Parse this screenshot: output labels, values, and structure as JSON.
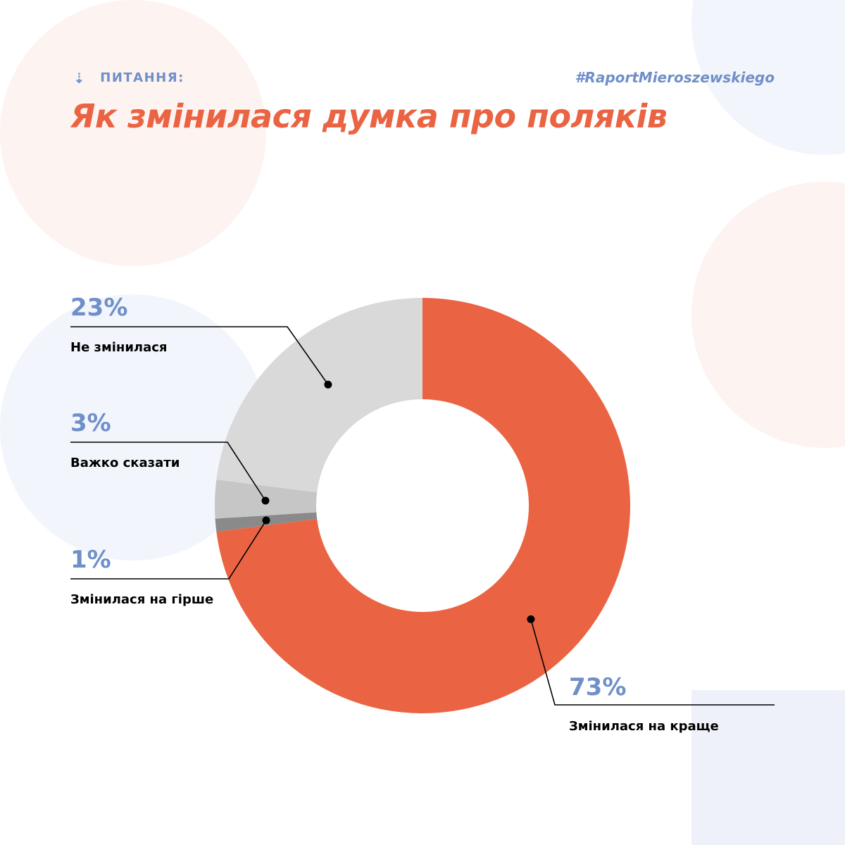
{
  "header": {
    "question_label": "ПИТАННЯ:",
    "question_icon": "arrow-down-icon",
    "hashtag": "#RaportMieroszewskiego",
    "title": "Як змінилася думка про поляків"
  },
  "colors": {
    "accent": "#ea6443",
    "label_blue": "#6f8fc8",
    "deco_pink": "#fdf3f0",
    "deco_blue": "#f2f5fb",
    "deco_rect": "#eef1fa"
  },
  "chart_data": {
    "type": "pie",
    "donut": true,
    "start": "12 o'clock",
    "direction": "clockwise",
    "slices": [
      {
        "label": "Змінилася на краще",
        "value": 73,
        "display": "73%",
        "color": "#ea6443"
      },
      {
        "label": "Змінилася на гірше",
        "value": 1,
        "display": "1%",
        "color": "#8a8a8a"
      },
      {
        "label": "Важко сказати",
        "value": 3,
        "display": "3%",
        "color": "#c6c6c6"
      },
      {
        "label": "Не змінилася",
        "value": 23,
        "display": "23%",
        "color": "#d9d9d9"
      }
    ]
  }
}
